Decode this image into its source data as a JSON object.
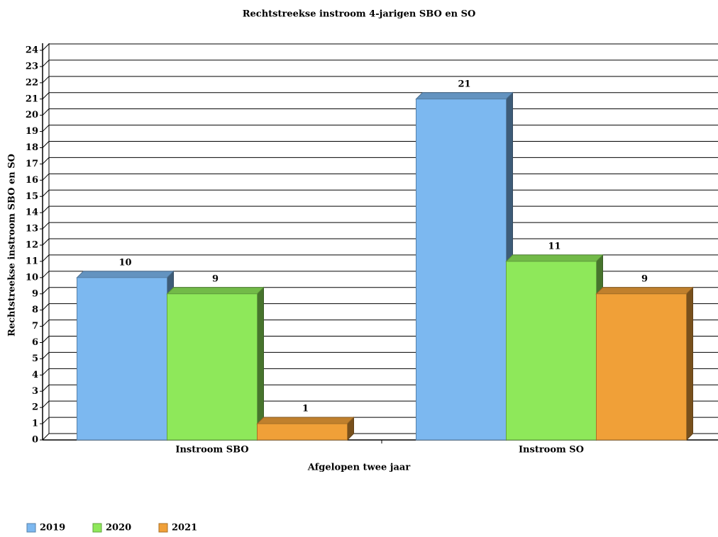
{
  "chart_data": {
    "type": "bar3d",
    "title": "Rechtstreekse instroom 4-jarigen SBO en SO",
    "xlabel": "Afgelopen twee jaar",
    "ylabel": "Rechtstreekse instroom SBO en SO",
    "categories": [
      "Instroom SBO",
      "Instroom SO"
    ],
    "series": [
      {
        "name": "2019",
        "color": "#7cb8f0",
        "values": [
          10,
          21
        ]
      },
      {
        "name": "2020",
        "color": "#8ee85a",
        "values": [
          9,
          11
        ]
      },
      {
        "name": "2021",
        "color": "#f0a038",
        "values": [
          1,
          9
        ]
      }
    ],
    "ylim": [
      0,
      24
    ],
    "yticks": [
      0,
      1,
      2,
      3,
      4,
      5,
      6,
      7,
      8,
      9,
      10,
      11,
      12,
      13,
      14,
      15,
      16,
      17,
      18,
      19,
      20,
      21,
      22,
      23,
      24
    ],
    "grid": true,
    "legend": "bottom-left"
  }
}
